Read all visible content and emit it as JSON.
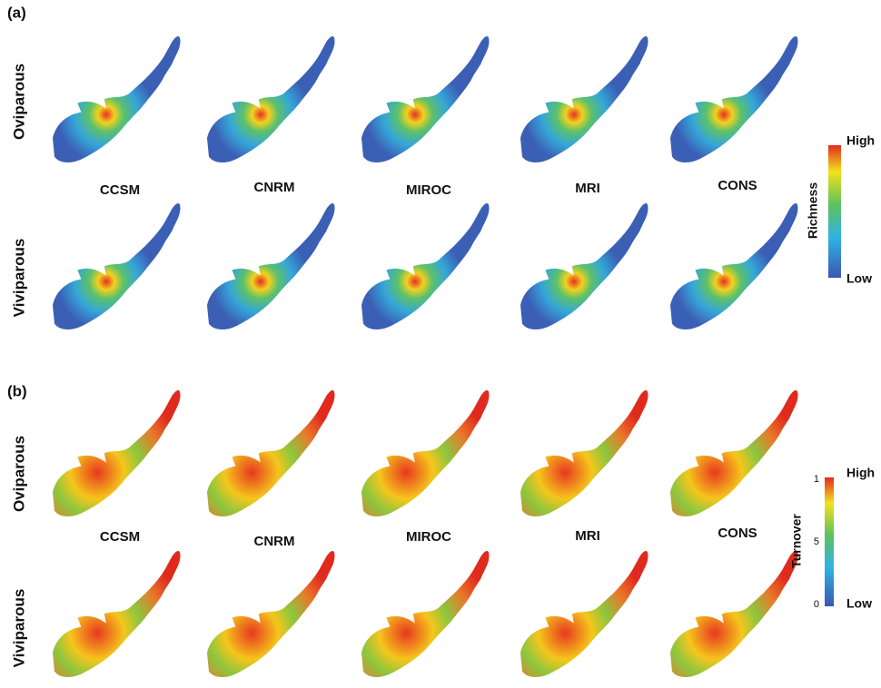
{
  "panels": [
    {
      "label": "(a)",
      "rows": [
        "Oviparous",
        "Viviparous"
      ],
      "columns": [
        "CCSM",
        "CNRM",
        "MIROC",
        "MRI",
        "CONS"
      ],
      "legend": {
        "title": "Richness",
        "high": "High",
        "low": "Low"
      }
    },
    {
      "label": "(b)",
      "rows": [
        "Oviparous",
        "Viviparous"
      ],
      "columns": [
        "CCSM",
        "CNRM",
        "MIROC",
        "MRI",
        "CONS"
      ],
      "legend": {
        "title": "Turnover",
        "high": "High",
        "low": "Low",
        "ticks": [
          "1",
          "5",
          "0"
        ]
      }
    }
  ]
}
